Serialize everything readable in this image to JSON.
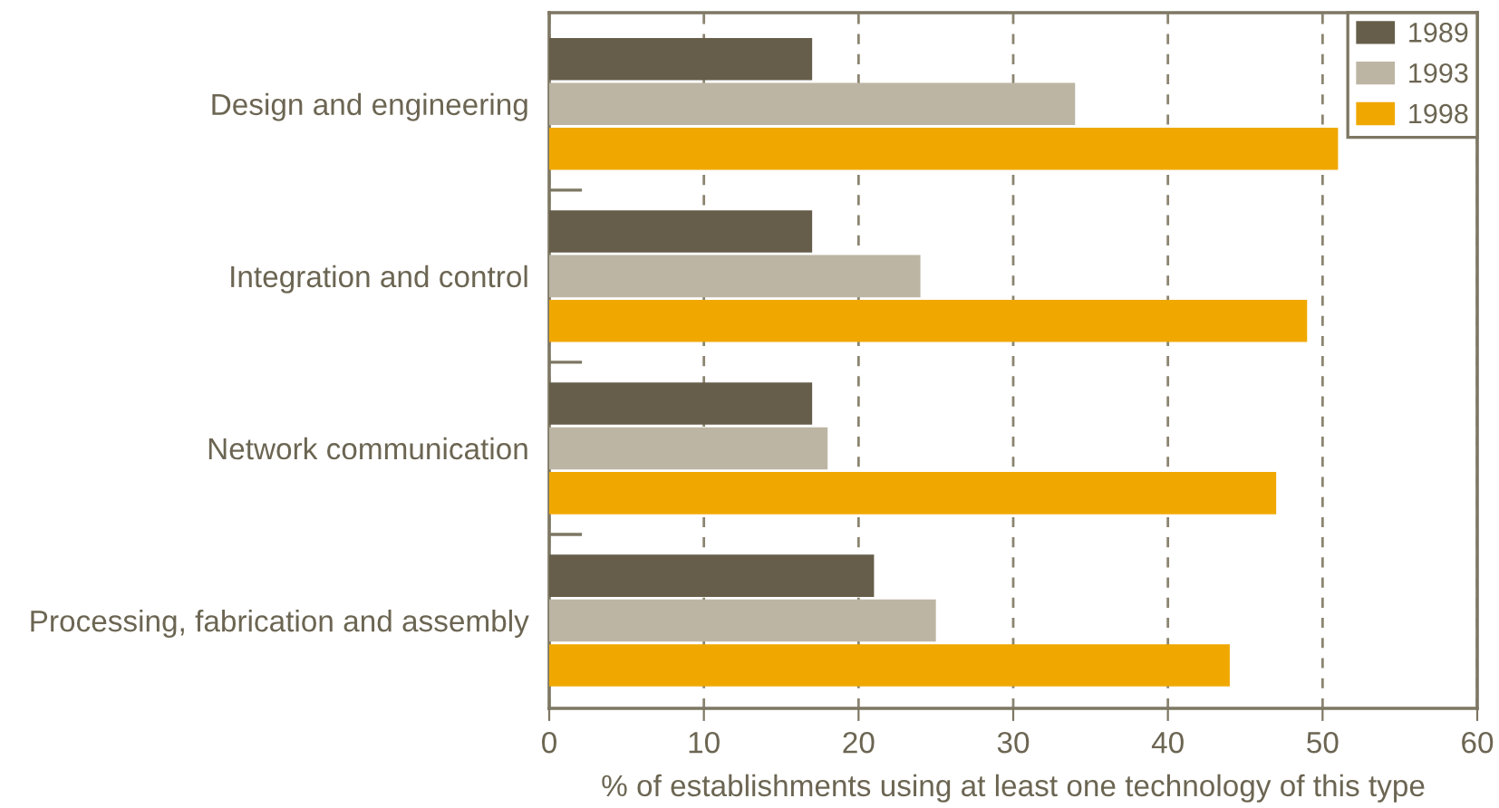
{
  "chart_data": {
    "type": "bar",
    "orientation": "horizontal",
    "categories": [
      "Design and engineering",
      "Integration and control",
      "Network communication",
      "Processing, fabrication and assembly"
    ],
    "series": [
      {
        "name": "1989",
        "color": "#665e4a",
        "values": [
          17,
          17,
          17,
          21
        ]
      },
      {
        "name": "1993",
        "color": "#bdb5a3",
        "values": [
          34,
          24,
          18,
          25
        ]
      },
      {
        "name": "1998",
        "color": "#f0a800",
        "values": [
          51,
          49,
          47,
          44
        ]
      }
    ],
    "xlim": [
      0,
      60
    ],
    "xticks": [
      0,
      10,
      20,
      30,
      40,
      50,
      60
    ],
    "xlabel": "% of establishments using at least one technology of this type",
    "grid": "x",
    "legend": "top right"
  }
}
